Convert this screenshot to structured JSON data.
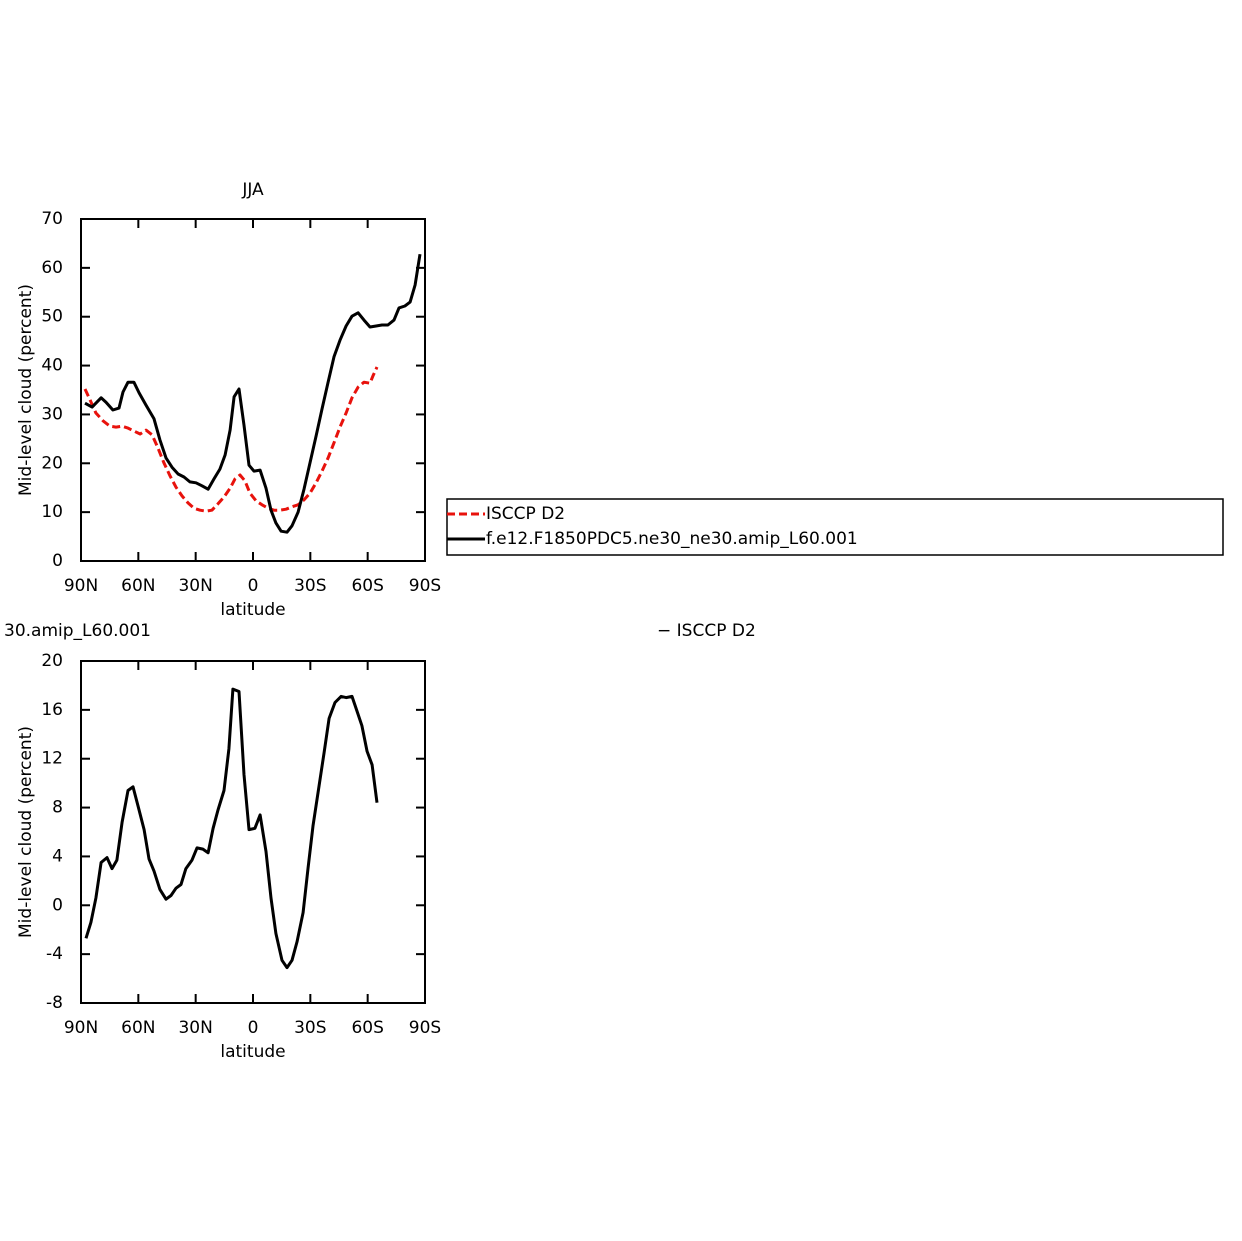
{
  "chart_data": [
    {
      "type": "line",
      "title": "JJA",
      "xlabel": "latitude",
      "ylabel": "Mid-level cloud (percent)",
      "xlim": [
        90,
        -90
      ],
      "ylim": [
        0,
        70
      ],
      "xticks": [
        {
          "value": 90,
          "label": "90N"
        },
        {
          "value": 60,
          "label": "60N"
        },
        {
          "value": 30,
          "label": "30N"
        },
        0,
        {
          "value": -30,
          "label": "30S"
        },
        {
          "value": -60,
          "label": "60S"
        },
        {
          "value": -90,
          "label": "90S"
        }
      ],
      "yticks": [
        0,
        10,
        20,
        30,
        40,
        50,
        60,
        70
      ],
      "legend": "right",
      "series": [
        {
          "name": "ISCCP D2",
          "color": "#e8120c",
          "style": "dashed",
          "x": [
            87.9,
            85.3,
            82.2,
            78.5,
            74.8,
            71.7,
            68.5,
            65.4,
            62.3,
            59.1,
            56.0,
            52.8,
            49.7,
            46.6,
            43.4,
            40.3,
            37.1,
            34.0,
            30.9,
            27.7,
            24.6,
            21.5,
            18.3,
            15.2,
            12.0,
            9.4,
            6.8,
            4.2,
            1.6,
            -1.6,
            -4.7,
            -7.9,
            -11.0,
            -14.1,
            -17.3,
            -20.4,
            -23.6,
            -26.7,
            -29.8,
            -33.0,
            -36.1,
            -39.3,
            -42.4,
            -45.5,
            -48.7,
            -51.8,
            -55.0,
            -58.1,
            -61.2,
            -62.8,
            -64.9
          ],
          "values": [
            35.2,
            33.0,
            30.3,
            28.7,
            27.6,
            27.4,
            27.6,
            27.2,
            26.6,
            26.0,
            26.8,
            25.8,
            23.1,
            20.1,
            17.4,
            15.1,
            13.3,
            11.9,
            10.8,
            10.4,
            10.2,
            10.4,
            11.7,
            13.1,
            14.9,
            16.8,
            17.6,
            16.4,
            13.9,
            12.3,
            11.5,
            10.8,
            10.4,
            10.4,
            10.6,
            11.1,
            11.5,
            12.5,
            13.9,
            16.0,
            18.4,
            21.1,
            24.2,
            27.4,
            30.3,
            33.4,
            35.6,
            36.6,
            36.4,
            37.9,
            39.7
          ]
        },
        {
          "name": "f.e12.F1850PDC5.ne30_ne30.amip_L60.001",
          "color": "#000000",
          "style": "solid",
          "x": [
            87.9,
            84.2,
            79.5,
            76.9,
            73.3,
            70.1,
            68.0,
            65.4,
            62.3,
            59.6,
            56.0,
            51.8,
            48.7,
            45.5,
            42.4,
            39.2,
            36.1,
            33.0,
            29.8,
            26.7,
            23.5,
            20.4,
            17.3,
            14.6,
            12.0,
            9.9,
            7.3,
            4.7,
            2.1,
            -0.5,
            -3.7,
            -6.8,
            -9.4,
            -12.0,
            -14.7,
            -17.8,
            -20.4,
            -23.6,
            -26.7,
            -29.8,
            -33.0,
            -36.1,
            -39.3,
            -42.4,
            -45.5,
            -48.7,
            -51.8,
            -55.0,
            -58.1,
            -61.2,
            -64.4,
            -67.5,
            -70.6,
            -73.8,
            -76.4,
            -79.5,
            -82.2,
            -84.8,
            -87.4
          ],
          "values": [
            32.3,
            31.5,
            33.4,
            32.5,
            30.9,
            31.3,
            34.6,
            36.6,
            36.6,
            34.4,
            31.9,
            29.1,
            24.8,
            21.1,
            19.2,
            17.8,
            17.2,
            16.2,
            16.0,
            15.4,
            14.7,
            16.8,
            18.8,
            21.7,
            26.8,
            33.6,
            35.2,
            27.8,
            19.6,
            18.4,
            18.6,
            14.9,
            10.4,
            7.8,
            6.1,
            5.9,
            7.2,
            10.0,
            14.7,
            20.1,
            25.6,
            31.1,
            36.6,
            41.8,
            45.2,
            48.1,
            50.1,
            50.8,
            49.3,
            47.9,
            48.1,
            48.3,
            48.3,
            49.3,
            51.8,
            52.2,
            53.0,
            56.5,
            62.8
          ]
        }
      ]
    },
    {
      "type": "line",
      "title_left": "30.amip_L60.001",
      "title_right": "− ISCCP D2",
      "xlabel": "latitude",
      "ylabel": "Mid-level cloud (percent)",
      "xlim": [
        90,
        -90
      ],
      "ylim": [
        -8,
        20
      ],
      "xticks": [
        {
          "value": 90,
          "label": "90N"
        },
        {
          "value": 60,
          "label": "60N"
        },
        {
          "value": 30,
          "label": "30N"
        },
        0,
        {
          "value": -30,
          "label": "30S"
        },
        {
          "value": -60,
          "label": "60S"
        },
        {
          "value": -90,
          "label": "90S"
        }
      ],
      "yticks": [
        -8,
        -4,
        0,
        4,
        8,
        12,
        16,
        20
      ],
      "series": [
        {
          "color": "#000000",
          "style": "solid",
          "x": [
            87.4,
            84.8,
            82.2,
            79.5,
            76.4,
            73.8,
            71.2,
            68.5,
            65.4,
            62.8,
            60.1,
            57.0,
            54.4,
            51.8,
            48.7,
            45.5,
            42.9,
            40.3,
            37.7,
            35.1,
            31.9,
            29.3,
            26.2,
            23.5,
            20.9,
            18.3,
            15.2,
            12.6,
            10.5,
            7.3,
            4.7,
            2.1,
            -1.0,
            -3.7,
            -6.8,
            -9.4,
            -12.0,
            -15.2,
            -17.8,
            -20.4,
            -23.0,
            -26.2,
            -28.8,
            -31.4,
            -34.6,
            -37.2,
            -39.8,
            -42.9,
            -46.1,
            -48.7,
            -51.8,
            -54.4,
            -57.0,
            -59.7,
            -62.3,
            -64.9
          ],
          "values": [
            -2.7,
            -1.4,
            0.6,
            3.5,
            3.9,
            3.0,
            3.7,
            6.8,
            9.4,
            9.7,
            8.1,
            6.2,
            3.8,
            2.8,
            1.3,
            0.5,
            0.8,
            1.4,
            1.7,
            3.0,
            3.7,
            4.7,
            4.6,
            4.3,
            6.3,
            7.8,
            9.4,
            12.8,
            17.7,
            17.5,
            10.7,
            6.2,
            6.3,
            7.4,
            4.4,
            0.6,
            -2.3,
            -4.5,
            -5.1,
            -4.5,
            -3.0,
            -0.6,
            3.0,
            6.5,
            9.8,
            12.5,
            15.3,
            16.6,
            17.1,
            17.0,
            17.1,
            15.9,
            14.7,
            12.6,
            11.5,
            8.4
          ]
        }
      ]
    }
  ]
}
